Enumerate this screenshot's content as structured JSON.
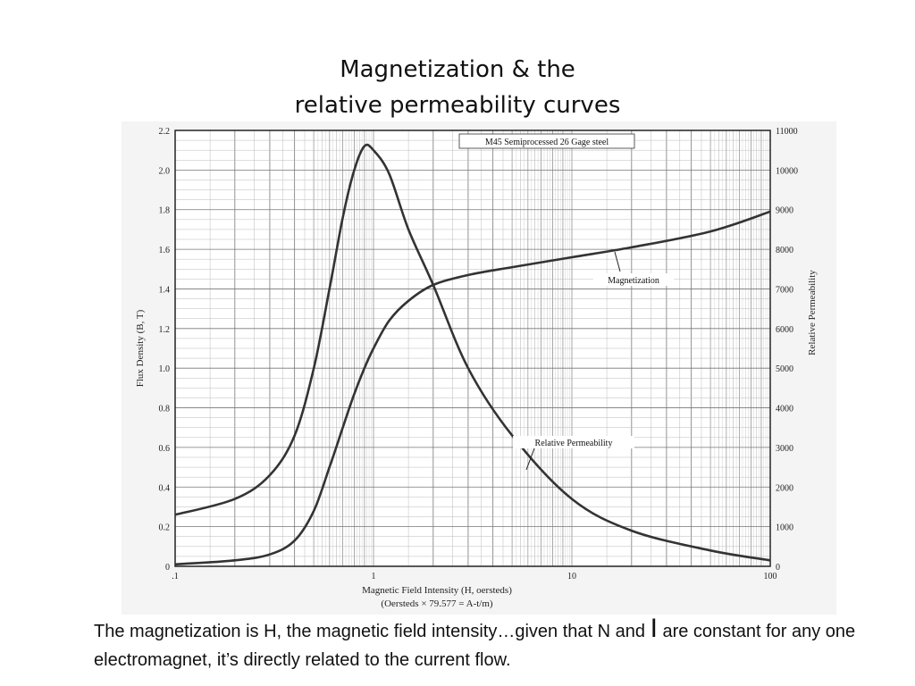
{
  "slide": {
    "title_line1": "Magnetization & the",
    "title_line2": "relative permeability curves",
    "caption_part1": "The magnetization is H, the magnetic field intensity…given that N and ",
    "caption_big": "I",
    "caption_part2": " are constant for any one electromagnet, it’s directly related to the current flow."
  },
  "chart_data": {
    "type": "line",
    "x_scale": "log",
    "xlim": [
      0.1,
      100
    ],
    "ylim_left": [
      0,
      2.2
    ],
    "ylim_right": [
      0,
      11000
    ],
    "x_ticks": [
      ".1",
      "1",
      "10",
      "100"
    ],
    "y_left_ticks": [
      "0",
      "0.2",
      "0.4",
      "0.6",
      "0.8",
      "1.0",
      "1.2",
      "1.4",
      "1.6",
      "1.8",
      "2.0",
      "2.2"
    ],
    "y_right_ticks": [
      "0",
      "1000",
      "2000",
      "3000",
      "4000",
      "5000",
      "6000",
      "7000",
      "8000",
      "9000",
      "10000",
      "11000"
    ],
    "xlabel": "Magnetic Field Intensity (H, oersteds)",
    "xlabel_note": "(Oersteds × 79.577 = A-t/m)",
    "ylabel_left": "Flux Density (B, T)",
    "ylabel_right": "Relative Permeability",
    "box_label": "M45 Semiprocessed 26 Gage steel",
    "grid": true,
    "series": [
      {
        "name": "Magnetization",
        "axis": "left",
        "points": [
          [
            0.1,
            0.01
          ],
          [
            0.2,
            0.03
          ],
          [
            0.3,
            0.06
          ],
          [
            0.4,
            0.13
          ],
          [
            0.5,
            0.28
          ],
          [
            0.6,
            0.5
          ],
          [
            0.7,
            0.7
          ],
          [
            0.8,
            0.87
          ],
          [
            0.9,
            1.0
          ],
          [
            1.0,
            1.1
          ],
          [
            1.2,
            1.24
          ],
          [
            1.5,
            1.34
          ],
          [
            2.0,
            1.42
          ],
          [
            3.0,
            1.47
          ],
          [
            5.0,
            1.51
          ],
          [
            10,
            1.56
          ],
          [
            20,
            1.61
          ],
          [
            50,
            1.69
          ],
          [
            100,
            1.79
          ]
        ]
      },
      {
        "name": "Relative Permeability",
        "axis": "right",
        "points": [
          [
            0.1,
            1300
          ],
          [
            0.2,
            1700
          ],
          [
            0.3,
            2300
          ],
          [
            0.4,
            3300
          ],
          [
            0.5,
            5000
          ],
          [
            0.6,
            7000
          ],
          [
            0.7,
            8800
          ],
          [
            0.8,
            10000
          ],
          [
            0.9,
            10600
          ],
          [
            1.0,
            10500
          ],
          [
            1.2,
            9900
          ],
          [
            1.5,
            8500
          ],
          [
            2.0,
            7100
          ],
          [
            3.0,
            5000
          ],
          [
            5.0,
            3300
          ],
          [
            10,
            1700
          ],
          [
            20,
            900
          ],
          [
            50,
            400
          ],
          [
            100,
            150
          ]
        ]
      }
    ],
    "annotations": [
      {
        "text": "Magnetization",
        "series": "Magnetization"
      },
      {
        "text": "Relative Permeability",
        "series": "Relative Permeability"
      }
    ]
  }
}
